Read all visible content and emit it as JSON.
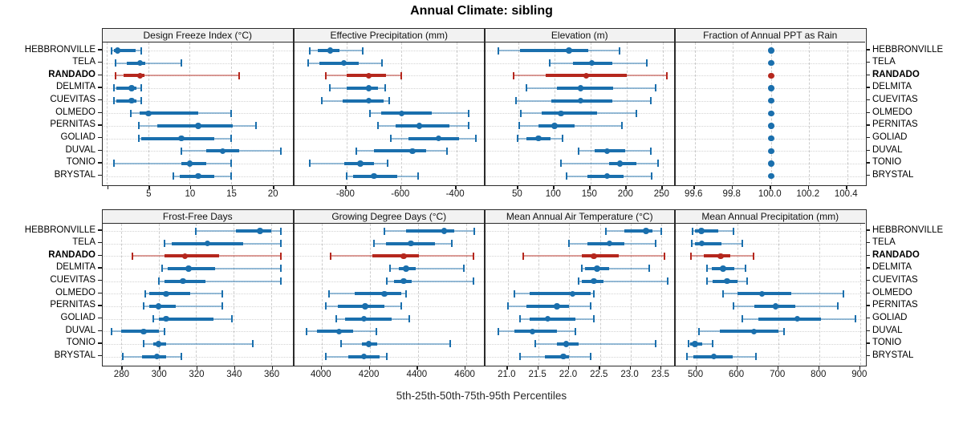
{
  "chart_data": {
    "type": "scatter",
    "subtype": "trellis-percentile-dot-whisker",
    "title": "Annual Climate: sibling",
    "footer": "5th-25th-50th-75th-95th Percentiles",
    "percentiles": [
      "5th",
      "25th",
      "50th",
      "75th",
      "95th"
    ],
    "legend_position": "none",
    "grid": "on",
    "categories": [
      "HEBBRONVILLE",
      "TELA",
      "RANDADO",
      "DELMITA",
      "CUEVITAS",
      "OLMEDO",
      "PERNITAS",
      "GOLIAD",
      "DUVAL",
      "TONIO",
      "BRYSTAL"
    ],
    "highlight_category": "RANDADO",
    "colors": {
      "series_blue": "#1a6fad",
      "series_blue_light": "rgba(26,111,173,0.45)",
      "highlight_red": "#b5271d",
      "highlight_red_light": "rgba(181,39,29,0.45)",
      "header_bg": "#f2f2f2",
      "border": "#2b2b2b",
      "gridline": "#cdcdcd",
      "row_guide": "#d3d3d3"
    },
    "panels": [
      {
        "title": "Design Freeze Index (°C)",
        "xlim": [
          -0.55,
          22.45
        ],
        "ticks": [
          {
            "v": 0,
            "t": ""
          },
          {
            "v": 5,
            "t": "5"
          },
          {
            "v": 10,
            "t": "10"
          },
          {
            "v": 15,
            "t": "15"
          },
          {
            "v": 20,
            "t": "20"
          }
        ],
        "values": [
          [
            0.6,
            0.9,
            1.3,
            3.5,
            4.1
          ],
          [
            1.0,
            2.4,
            4.0,
            4.6,
            9.0
          ],
          [
            1.0,
            2.0,
            4.0,
            4.5,
            16.0
          ],
          [
            0.9,
            1.1,
            3.0,
            3.6,
            4.1
          ],
          [
            0.9,
            1.1,
            3.0,
            3.6,
            4.1
          ],
          [
            2.9,
            4.0,
            5.0,
            11.0,
            15.0
          ],
          [
            3.9,
            6.1,
            11.0,
            15.2,
            18.0
          ],
          [
            3.9,
            4.1,
            9.0,
            13.0,
            15.0
          ],
          [
            9.0,
            12.0,
            14.0,
            16.0,
            21.0
          ],
          [
            0.9,
            9.0,
            10.0,
            12.0,
            15.0
          ],
          [
            8.0,
            8.8,
            11.0,
            13.0,
            15.0
          ]
        ]
      },
      {
        "title": "Effective Precipitation (mm)",
        "xlim": [
          -990,
          -295
        ],
        "ticks": [
          {
            "v": -800,
            "t": "-800"
          },
          {
            "v": -600,
            "t": "-600"
          },
          {
            "v": -400,
            "t": "-400"
          }
        ],
        "values": [
          [
            -935,
            -905,
            -860,
            -825,
            -740
          ],
          [
            -940,
            -900,
            -810,
            -755,
            -670
          ],
          [
            -875,
            -800,
            -720,
            -655,
            -600
          ],
          [
            -860,
            -800,
            -720,
            -685,
            -660
          ],
          [
            -890,
            -815,
            -720,
            -665,
            -645
          ],
          [
            -715,
            -675,
            -600,
            -490,
            -355
          ],
          [
            -685,
            -620,
            -535,
            -425,
            -355
          ],
          [
            -640,
            -575,
            -465,
            -390,
            -330
          ],
          [
            -765,
            -700,
            -560,
            -510,
            -435
          ],
          [
            -935,
            -810,
            -750,
            -700,
            -650
          ],
          [
            -800,
            -775,
            -700,
            -615,
            -540
          ]
        ]
      },
      {
        "title": "Elevation (m)",
        "xlim": [
          4,
          268
        ],
        "ticks": [
          {
            "v": 50,
            "t": "50"
          },
          {
            "v": 100,
            "t": "100"
          },
          {
            "v": 150,
            "t": "150"
          },
          {
            "v": 200,
            "t": "200"
          },
          {
            "v": 250,
            "t": "250"
          }
        ],
        "values": [
          [
            22,
            52,
            120,
            147,
            190
          ],
          [
            94,
            126,
            152,
            180,
            228
          ],
          [
            43,
            88,
            144,
            200,
            256
          ],
          [
            61,
            103,
            136,
            181,
            240
          ],
          [
            47,
            96,
            136,
            180,
            234
          ],
          [
            54,
            82,
            109,
            159,
            213
          ],
          [
            51,
            78,
            100,
            128,
            193
          ],
          [
            49,
            61,
            78,
            95,
            111
          ],
          [
            133,
            156,
            173,
            198,
            233
          ],
          [
            109,
            176,
            191,
            214,
            243
          ],
          [
            117,
            146,
            173,
            196,
            235
          ]
        ]
      },
      {
        "title": "Fraction of Annual PPT as Rain",
        "xlim": [
          99.5,
          100.5
        ],
        "ticks": [
          {
            "v": 99.6,
            "t": "99.6"
          },
          {
            "v": 99.8,
            "t": "99.8"
          },
          {
            "v": 100.0,
            "t": "100.0"
          },
          {
            "v": 100.2,
            "t": "100.2"
          },
          {
            "v": 100.4,
            "t": "100.4"
          }
        ],
        "values": [
          [
            100,
            100,
            100,
            100,
            100
          ],
          [
            100,
            100,
            100,
            100,
            100
          ],
          [
            100,
            100,
            100,
            100,
            100
          ],
          [
            100,
            100,
            100,
            100,
            100
          ],
          [
            100,
            100,
            100,
            100,
            100
          ],
          [
            100,
            100,
            100,
            100,
            100
          ],
          [
            100,
            100,
            100,
            100,
            100
          ],
          [
            100,
            100,
            100,
            100,
            100
          ],
          [
            100,
            100,
            100,
            100,
            100
          ],
          [
            100,
            100,
            100,
            100,
            100
          ],
          [
            100,
            100,
            100,
            100,
            100
          ]
        ]
      },
      {
        "title": "Frost-Free Days",
        "xlim": [
          270,
          371.5
        ],
        "ticks": [
          {
            "v": 280,
            "t": "280"
          },
          {
            "v": 300,
            "t": "300"
          },
          {
            "v": 320,
            "t": "320"
          },
          {
            "v": 340,
            "t": "340"
          },
          {
            "v": 360,
            "t": "360"
          }
        ],
        "values": [
          [
            320,
            341,
            354,
            360,
            365
          ],
          [
            303,
            307,
            326,
            345,
            365
          ],
          [
            286,
            303,
            314,
            332,
            365
          ],
          [
            302,
            305,
            316,
            330,
            365
          ],
          [
            300,
            303,
            313,
            325,
            365
          ],
          [
            293,
            295,
            304,
            317,
            334
          ],
          [
            292,
            295,
            300,
            309,
            334
          ],
          [
            297,
            300,
            304,
            329,
            339
          ],
          [
            275,
            280,
            292,
            300,
            303
          ],
          [
            292,
            297,
            300,
            304,
            350
          ],
          [
            281,
            291,
            299,
            304,
            312
          ]
        ]
      },
      {
        "title": "Growing Degree Days (°C)",
        "xlim": [
          3885,
          4680
        ],
        "ticks": [
          {
            "v": 4000,
            "t": "4000"
          },
          {
            "v": 4200,
            "t": "4200"
          },
          {
            "v": 4400,
            "t": "4400"
          },
          {
            "v": 4600,
            "t": "4600"
          }
        ],
        "values": [
          [
            4260,
            4350,
            4510,
            4550,
            4635
          ],
          [
            4215,
            4265,
            4370,
            4470,
            4540
          ],
          [
            4035,
            4210,
            4340,
            4405,
            4630
          ],
          [
            4285,
            4320,
            4350,
            4390,
            4590
          ],
          [
            4270,
            4300,
            4340,
            4375,
            4630
          ],
          [
            4030,
            4135,
            4260,
            4330,
            4350
          ],
          [
            4015,
            4065,
            4180,
            4260,
            4330
          ],
          [
            4060,
            4095,
            4175,
            4290,
            4365
          ],
          [
            3935,
            3980,
            4070,
            4130,
            4225
          ],
          [
            4080,
            4165,
            4195,
            4230,
            4535
          ],
          [
            4015,
            4110,
            4175,
            4240,
            4270
          ]
        ]
      },
      {
        "title": "Mean Annual Air Temperature (°C)",
        "xlim": [
          20.63,
          23.73
        ],
        "ticks": [
          {
            "v": 21.0,
            "t": "21.0"
          },
          {
            "v": 21.5,
            "t": "21.5"
          },
          {
            "v": 22.0,
            "t": "22.0"
          },
          {
            "v": 22.5,
            "t": "22.5"
          },
          {
            "v": 23.0,
            "t": "23.0"
          },
          {
            "v": 23.5,
            "t": "23.5"
          }
        ],
        "values": [
          [
            22.6,
            22.9,
            23.25,
            23.35,
            23.5
          ],
          [
            22.0,
            22.3,
            22.65,
            22.9,
            23.4
          ],
          [
            21.25,
            22.2,
            22.4,
            22.8,
            23.55
          ],
          [
            22.2,
            22.25,
            22.45,
            22.65,
            23.3
          ],
          [
            22.15,
            22.2,
            22.4,
            22.55,
            23.6
          ],
          [
            21.1,
            21.35,
            22.05,
            22.35,
            22.4
          ],
          [
            21.0,
            21.3,
            21.8,
            22.0,
            22.35
          ],
          [
            21.2,
            21.35,
            21.65,
            22.1,
            22.4
          ],
          [
            20.85,
            21.1,
            21.4,
            21.8,
            22.1
          ],
          [
            21.45,
            21.8,
            21.95,
            22.15,
            23.4
          ],
          [
            21.2,
            21.6,
            21.9,
            22.0,
            22.35
          ]
        ]
      },
      {
        "title": "Mean Annual Precipitation (mm)",
        "xlim": [
          449,
          914
        ],
        "ticks": [
          {
            "v": 500,
            "t": "500"
          },
          {
            "v": 600,
            "t": "600"
          },
          {
            "v": 700,
            "t": "700"
          },
          {
            "v": 800,
            "t": "800"
          },
          {
            "v": 900,
            "t": "900"
          }
        ],
        "values": [
          [
            490,
            496,
            512,
            553,
            590
          ],
          [
            488,
            496,
            513,
            561,
            611
          ],
          [
            487,
            518,
            559,
            583,
            638
          ],
          [
            525,
            537,
            565,
            591,
            619
          ],
          [
            525,
            540,
            574,
            599,
            624
          ],
          [
            565,
            600,
            659,
            731,
            858
          ],
          [
            590,
            641,
            693,
            741,
            845
          ],
          [
            611,
            651,
            746,
            804,
            887
          ],
          [
            505,
            557,
            640,
            700,
            714
          ],
          [
            480,
            485,
            496,
            513,
            540
          ],
          [
            477,
            492,
            542,
            588,
            645
          ]
        ]
      }
    ]
  }
}
